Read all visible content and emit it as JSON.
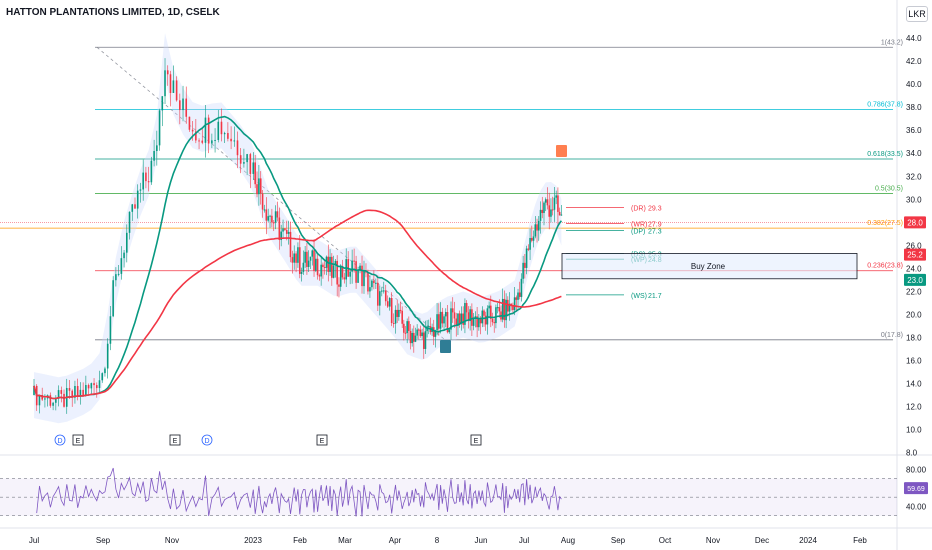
{
  "header": {
    "symbol": "HATTON PLANTATIONS LIMITED, 1D, CSELK",
    "currency": "LKR"
  },
  "chart_data": {
    "type": "candlestick",
    "x_axis": {
      "labels": [
        "Jul",
        "Sep",
        "Nov",
        "2023",
        "Feb",
        "Mar",
        "Apr",
        "8",
        "Jun",
        "Jul",
        "Aug",
        "Sep",
        "Oct",
        "Nov",
        "Dec",
        "2024",
        "Feb"
      ]
    },
    "y_axis": {
      "range": [
        8.0,
        44.0
      ],
      "ticks": [
        "44.0",
        "42.0",
        "40.0",
        "38.0",
        "36.0",
        "34.0",
        "32.0",
        "30.0",
        "28.0",
        "26.0",
        "24.0",
        "22.0",
        "20.0",
        "18.0",
        "16.0",
        "14.0",
        "12.0",
        "10.0",
        "8.0"
      ]
    },
    "last_price": "28.0",
    "price_badges": [
      {
        "value": "28.0",
        "color": "#f23645"
      },
      {
        "value": "25.2",
        "color": "#f23645"
      },
      {
        "value": "23.0",
        "color": "#089981"
      }
    ],
    "fibonacci": [
      {
        "label": "1(43.2)",
        "price": 43.2,
        "color": "#787b86"
      },
      {
        "label": "0.786(37.8)",
        "price": 37.8,
        "color": "#00bcd4"
      },
      {
        "label": "0.618(33.5)",
        "price": 33.5,
        "color": "#089981"
      },
      {
        "label": "0.5(30.5)",
        "price": 30.5,
        "color": "#4caf50"
      },
      {
        "label": "0.382(27.5)",
        "price": 27.5,
        "color": "#ff9800"
      },
      {
        "label": "0.236(23.8)",
        "price": 23.8,
        "color": "#f23645"
      },
      {
        "label": "0(17.8)",
        "price": 17.8,
        "color": "#787b86"
      }
    ],
    "pivots": [
      {
        "label": "(DR)",
        "value": "29.3",
        "price": 29.3,
        "color": "#f23645"
      },
      {
        "label": "(WR)",
        "value": "27.9",
        "price": 27.9,
        "color": "#f23645"
      },
      {
        "label": "(DP)",
        "value": "27.3",
        "price": 27.3,
        "color": "#089981"
      },
      {
        "label": "(DS)",
        "value": "25.3",
        "price": 25.3,
        "color": "#089981"
      },
      {
        "label": "(WP)",
        "value": "24.8",
        "price": 24.8,
        "color": "#089981"
      },
      {
        "label": "(WS)",
        "value": "21.7",
        "price": 21.7,
        "color": "#089981"
      }
    ],
    "buy_zone": {
      "label": "Buy Zone",
      "top": 25.3,
      "bottom": 23.1
    },
    "events": [
      "D",
      "E",
      "E",
      "D",
      "E",
      "E"
    ],
    "series": [
      {
        "name": "Price",
        "color_up": "#089981",
        "color_down": "#f23645"
      },
      {
        "name": "MA fast",
        "color": "#089981"
      },
      {
        "name": "MA slow",
        "color": "#f23645"
      }
    ],
    "rsi": {
      "value": "59.69",
      "ticks": [
        "80.00",
        "40.00"
      ],
      "upper": 70,
      "lower": 30,
      "mid": 50,
      "range": [
        20,
        90
      ]
    }
  }
}
